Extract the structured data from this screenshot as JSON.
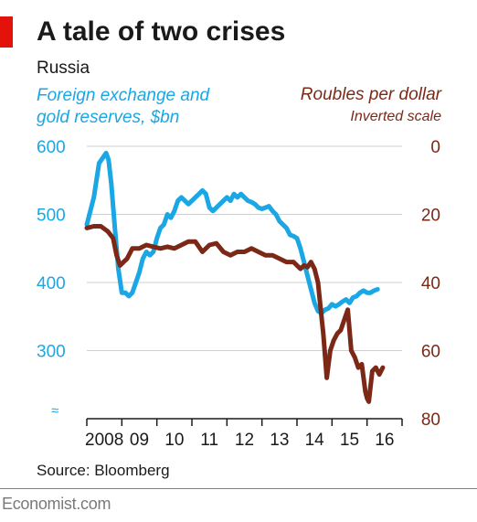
{
  "header": {
    "title": "A tale of two crises",
    "subtitle": "Russia"
  },
  "footer": {
    "source": "Source: Bloomberg",
    "brand": "Economist.com"
  },
  "colors": {
    "reserves": "#1aa7e3",
    "rouble": "#7c2816",
    "accent_tag": "#e3120b",
    "grid": "#cfcfcf"
  },
  "chart_data": {
    "type": "line",
    "title": "A tale of two crises",
    "subtitle": "Russia",
    "x_tick_labels": [
      "2008",
      "09",
      "10",
      "11",
      "12",
      "13",
      "14",
      "15",
      "16"
    ],
    "x_range": [
      2008,
      2017
    ],
    "grid": true,
    "axes": {
      "left": {
        "label_line1": "Foreign exchange and",
        "label_line2": "gold reserves, $bn",
        "ticks": [
          600,
          500,
          400,
          300
        ],
        "range": [
          200,
          600
        ],
        "broken_axis_symbol": "≈"
      },
      "right": {
        "label": "Roubles per dollar",
        "note": "Inverted scale",
        "ticks": [
          0,
          20,
          40,
          60,
          80
        ],
        "range": [
          0,
          80
        ],
        "inverted": true
      }
    },
    "series": [
      {
        "name": "Foreign exchange and gold reserves, $bn",
        "axis": "left",
        "color": "#1aa7e3",
        "x": [
          2008.0,
          2008.2,
          2008.35,
          2008.55,
          2008.62,
          2008.7,
          2008.8,
          2008.9,
          2009.0,
          2009.1,
          2009.2,
          2009.3,
          2009.4,
          2009.5,
          2009.6,
          2009.7,
          2009.8,
          2009.9,
          2010.0,
          2010.1,
          2010.2,
          2010.3,
          2010.4,
          2010.5,
          2010.6,
          2010.7,
          2010.8,
          2010.9,
          2011.0,
          2011.1,
          2011.2,
          2011.3,
          2011.4,
          2011.5,
          2011.6,
          2011.7,
          2011.8,
          2011.9,
          2012.0,
          2012.1,
          2012.2,
          2012.3,
          2012.4,
          2012.5,
          2012.6,
          2012.7,
          2012.8,
          2012.9,
          2013.0,
          2013.1,
          2013.2,
          2013.3,
          2013.4,
          2013.5,
          2013.6,
          2013.7,
          2013.8,
          2013.9,
          2014.0,
          2014.1,
          2014.2,
          2014.3,
          2014.4,
          2014.5,
          2014.6,
          2014.7,
          2014.8,
          2014.9,
          2015.0,
          2015.1,
          2015.2,
          2015.3,
          2015.4,
          2015.5,
          2015.6,
          2015.7,
          2015.8,
          2015.9,
          2016.0,
          2016.1,
          2016.2,
          2016.3
        ],
        "values": [
          485,
          525,
          575,
          590,
          580,
          545,
          480,
          420,
          385,
          385,
          380,
          385,
          400,
          415,
          435,
          445,
          440,
          445,
          465,
          480,
          485,
          500,
          495,
          505,
          520,
          525,
          520,
          515,
          520,
          525,
          530,
          535,
          530,
          510,
          505,
          510,
          515,
          520,
          525,
          520,
          530,
          525,
          530,
          525,
          520,
          518,
          515,
          510,
          508,
          510,
          512,
          505,
          500,
          490,
          485,
          480,
          470,
          468,
          465,
          450,
          430,
          410,
          390,
          370,
          358,
          355,
          360,
          362,
          368,
          365,
          368,
          372,
          375,
          370,
          378,
          380,
          385,
          388,
          385,
          385,
          388,
          390
        ]
      },
      {
        "name": "Roubles per dollar",
        "axis": "right",
        "color": "#7c2816",
        "x": [
          2008.0,
          2008.2,
          2008.4,
          2008.6,
          2008.75,
          2008.85,
          2008.95,
          2009.05,
          2009.15,
          2009.3,
          2009.5,
          2009.7,
          2009.9,
          2010.1,
          2010.3,
          2010.5,
          2010.7,
          2010.9,
          2011.1,
          2011.3,
          2011.5,
          2011.7,
          2011.9,
          2012.1,
          2012.3,
          2012.5,
          2012.7,
          2012.9,
          2013.1,
          2013.3,
          2013.5,
          2013.7,
          2013.9,
          2014.0,
          2014.1,
          2014.2,
          2014.3,
          2014.4,
          2014.5,
          2014.6,
          2014.7,
          2014.75,
          2014.85,
          2014.95,
          2015.05,
          2015.15,
          2015.25,
          2015.35,
          2015.45,
          2015.55,
          2015.65,
          2015.75,
          2015.85,
          2015.95,
          2016.0,
          2016.05,
          2016.15,
          2016.25,
          2016.35,
          2016.45
        ],
        "values": [
          24,
          23.5,
          23.5,
          25,
          27,
          32,
          35,
          34,
          33,
          30,
          30,
          29,
          29.5,
          30,
          29.5,
          30,
          29,
          28,
          28,
          31,
          29,
          28.5,
          31,
          32,
          31,
          31,
          30,
          31,
          32,
          32,
          33,
          34,
          34,
          35,
          36,
          35,
          35.5,
          34,
          36,
          40,
          50,
          55,
          68,
          60,
          57,
          55,
          54,
          51,
          48,
          60,
          62,
          65,
          64,
          72,
          74,
          75,
          66,
          65,
          67,
          65
        ]
      }
    ]
  }
}
